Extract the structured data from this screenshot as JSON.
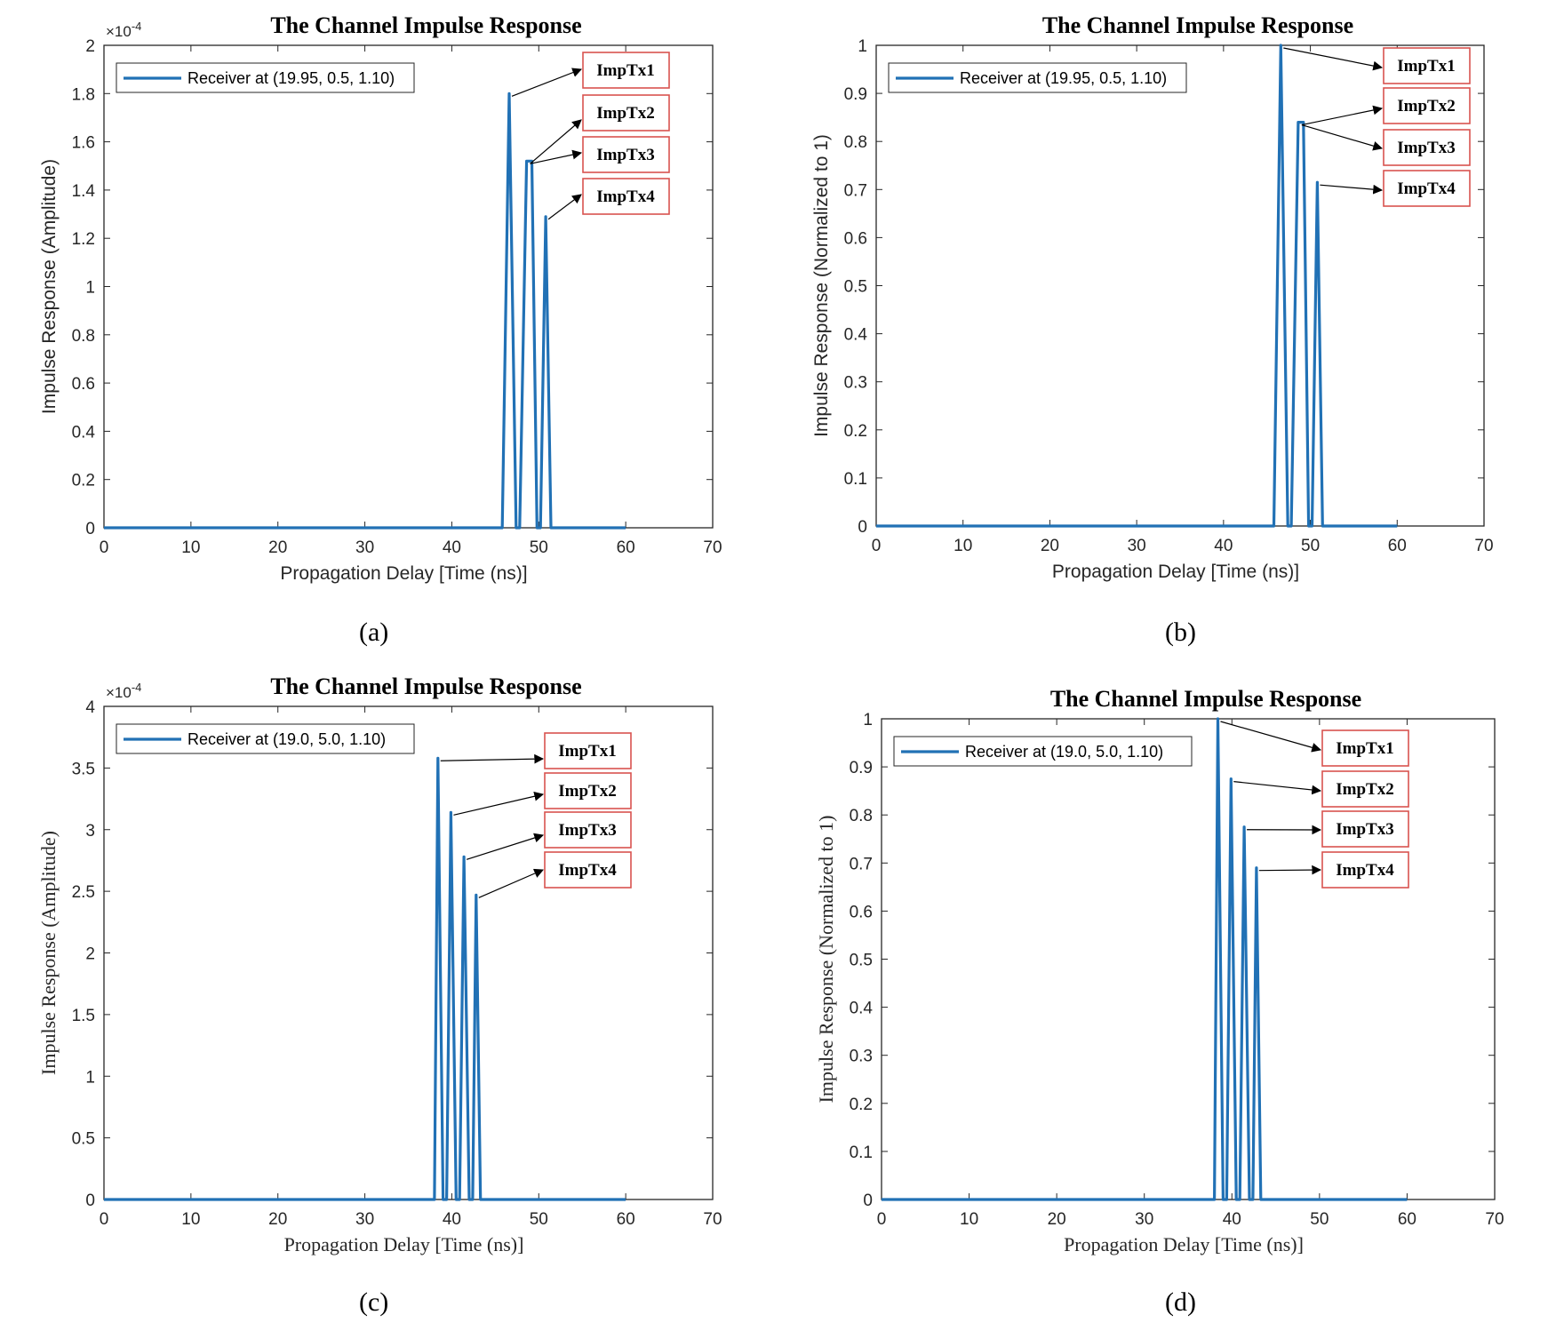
{
  "chart_data": [
    {
      "id": "a",
      "type": "line",
      "title": "The Channel Impulse Response",
      "xlabel": "Propagation Delay [Time (ns)]",
      "ylabel": "Impulse Response (Amplitude)",
      "label_font": "sans",
      "xlim": [
        0,
        70
      ],
      "ylim": [
        0,
        2
      ],
      "xticks": [
        0,
        10,
        20,
        30,
        40,
        50,
        60,
        70
      ],
      "yticks": [
        0,
        0.2,
        0.4,
        0.6,
        0.8,
        1,
        1.2,
        1.4,
        1.6,
        1.8,
        2
      ],
      "exponent_base": "×10",
      "exponent_power": "-4",
      "legend": "Receiver at (19.95, 0.5, 1.10)",
      "series": [
        {
          "name": "Receiver at (19.95, 0.5, 1.10)",
          "x": [
            0,
            45.8,
            46.6,
            47.4,
            47.8,
            48.6,
            49.2,
            49.8,
            50.2,
            50.8,
            51.4,
            60
          ],
          "y": [
            0,
            0,
            1.8,
            0,
            0,
            1.52,
            1.52,
            0,
            0,
            1.29,
            0,
            0
          ]
        }
      ],
      "peaks": [
        [
          46.6,
          1.8
        ],
        [
          48.7,
          1.52
        ],
        [
          49.0,
          1.52
        ],
        [
          50.8,
          1.29
        ]
      ],
      "annotations": [
        "ImpTx1",
        "ImpTx2",
        "ImpTx3",
        "ImpTx4"
      ],
      "panel_label": "(a)"
    },
    {
      "id": "b",
      "type": "line",
      "title": "The Channel Impulse Response",
      "xlabel": "Propagation Delay [Time (ns)]",
      "ylabel": "Impulse Response (Normalized to 1)",
      "label_font": "sans",
      "xlim": [
        0,
        70
      ],
      "ylim": [
        0,
        1
      ],
      "xticks": [
        0,
        10,
        20,
        30,
        40,
        50,
        60,
        70
      ],
      "yticks": [
        0,
        0.1,
        0.2,
        0.3,
        0.4,
        0.5,
        0.6,
        0.7,
        0.8,
        0.9,
        1
      ],
      "exponent_base": "",
      "exponent_power": "",
      "legend": "Receiver at (19.95, 0.5, 1.10)",
      "series": [
        {
          "name": "Receiver at (19.95, 0.5, 1.10)",
          "x": [
            0,
            45.8,
            46.6,
            47.4,
            47.8,
            48.6,
            49.2,
            49.8,
            50.2,
            50.8,
            51.4,
            60
          ],
          "y": [
            0,
            0,
            1.0,
            0,
            0,
            0.84,
            0.84,
            0,
            0,
            0.715,
            0,
            0
          ]
        }
      ],
      "peaks": [
        [
          46.6,
          1.0
        ],
        [
          48.7,
          0.84
        ],
        [
          49.0,
          0.84
        ],
        [
          50.8,
          0.715
        ]
      ],
      "annotations": [
        "ImpTx1",
        "ImpTx2",
        "ImpTx3",
        "ImpTx4"
      ],
      "panel_label": "(b)"
    },
    {
      "id": "c",
      "type": "line",
      "title": "The Channel Impulse Response",
      "xlabel": "Propagation Delay [Time (ns)]",
      "ylabel": "Impulse Response (Amplitude)",
      "label_font": "serif",
      "xlim": [
        0,
        70
      ],
      "ylim": [
        0,
        4
      ],
      "xticks": [
        0,
        10,
        20,
        30,
        40,
        50,
        60,
        70
      ],
      "yticks": [
        0,
        0.5,
        1,
        1.5,
        2,
        2.5,
        3,
        3.5,
        4
      ],
      "exponent_base": "×10",
      "exponent_power": "-4",
      "legend": "Receiver at (19.0, 5.0, 1.10)",
      "series": [
        {
          "name": "Receiver at (19.0, 5.0, 1.10)",
          "x": [
            0,
            38.0,
            38.4,
            39.0,
            39.4,
            39.9,
            40.5,
            40.9,
            41.4,
            42.0,
            42.4,
            42.8,
            43.3,
            60
          ],
          "y": [
            0,
            0,
            3.58,
            0,
            0,
            3.14,
            0,
            0,
            2.78,
            0,
            0,
            2.47,
            0,
            0
          ]
        }
      ],
      "peaks": [
        [
          38.4,
          3.58
        ],
        [
          39.9,
          3.14
        ],
        [
          41.4,
          2.78
        ],
        [
          42.8,
          2.47
        ]
      ],
      "annotations": [
        "ImpTx1",
        "ImpTx2",
        "ImpTx3",
        "ImpTx4"
      ],
      "panel_label": "(c)"
    },
    {
      "id": "d",
      "type": "line",
      "title": "The Channel Impulse Response",
      "xlabel": "Propagation Delay [Time (ns)]",
      "ylabel": "Impulse Response (Normalized to 1)",
      "label_font": "serif",
      "xlim": [
        0,
        70
      ],
      "ylim": [
        0,
        1
      ],
      "xticks": [
        0,
        10,
        20,
        30,
        40,
        50,
        60,
        70
      ],
      "yticks": [
        0,
        0.1,
        0.2,
        0.3,
        0.4,
        0.5,
        0.6,
        0.7,
        0.8,
        0.9,
        1
      ],
      "exponent_base": "",
      "exponent_power": "",
      "legend": "Receiver at (19.0, 5.0, 1.10)",
      "series": [
        {
          "name": "Receiver at (19.0, 5.0, 1.10)",
          "x": [
            0,
            38.0,
            38.4,
            39.0,
            39.4,
            39.9,
            40.5,
            40.9,
            41.4,
            42.0,
            42.4,
            42.8,
            43.3,
            60
          ],
          "y": [
            0,
            0,
            1.0,
            0,
            0,
            0.875,
            0,
            0,
            0.775,
            0,
            0,
            0.69,
            0,
            0
          ]
        }
      ],
      "peaks": [
        [
          38.4,
          1.0
        ],
        [
          39.9,
          0.875
        ],
        [
          41.4,
          0.775
        ],
        [
          42.8,
          0.69
        ]
      ],
      "annotations": [
        "ImpTx1",
        "ImpTx2",
        "ImpTx3",
        "ImpTx4"
      ],
      "panel_label": "(d)"
    }
  ],
  "colors": {
    "series": "#2171b5",
    "annotation_border": "#d9534f",
    "axis": "#262626",
    "arrow": "#000000"
  }
}
